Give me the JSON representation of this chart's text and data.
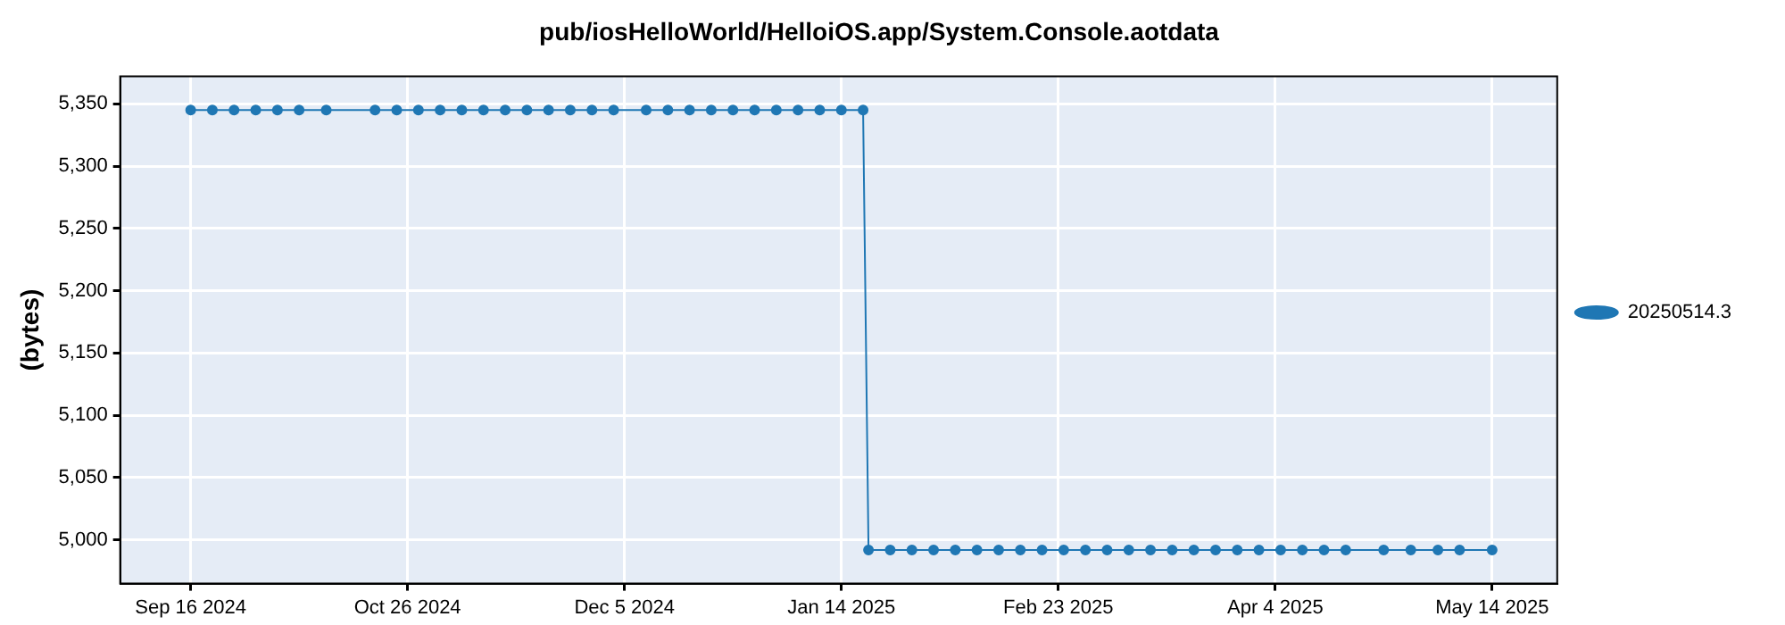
{
  "chart_data": {
    "type": "line",
    "title": "pub/iosHelloWorld/HelloiOS.app/System.Console.aotdata",
    "ylabel": "(bytes)",
    "x": [
      "2024-09-16",
      "2024-09-20",
      "2024-09-24",
      "2024-09-28",
      "2024-10-02",
      "2024-10-06",
      "2024-10-11",
      "2024-10-20",
      "2024-10-24",
      "2024-10-28",
      "2024-11-01",
      "2024-11-05",
      "2024-11-09",
      "2024-11-13",
      "2024-11-17",
      "2024-11-21",
      "2024-11-25",
      "2024-11-29",
      "2024-12-03",
      "2024-12-09",
      "2024-12-13",
      "2024-12-17",
      "2024-12-21",
      "2024-12-25",
      "2024-12-29",
      "2025-01-02",
      "2025-01-06",
      "2025-01-10",
      "2025-01-14",
      "2025-01-18",
      "2025-01-19",
      "2025-01-23",
      "2025-01-27",
      "2025-01-31",
      "2025-02-04",
      "2025-02-08",
      "2025-02-12",
      "2025-02-16",
      "2025-02-20",
      "2025-02-24",
      "2025-02-28",
      "2025-03-04",
      "2025-03-08",
      "2025-03-12",
      "2025-03-16",
      "2025-03-20",
      "2025-03-24",
      "2025-03-28",
      "2025-04-01",
      "2025-04-05",
      "2025-04-09",
      "2025-04-13",
      "2025-04-17",
      "2025-04-24",
      "2025-04-29",
      "2025-05-04",
      "2025-05-08",
      "2025-05-14"
    ],
    "series": [
      {
        "name": "20250514.3",
        "color": "#1f77b4",
        "values": [
          5345,
          5345,
          5345,
          5345,
          5345,
          5345,
          5345,
          5345,
          5345,
          5345,
          5345,
          5345,
          5345,
          5345,
          5345,
          5345,
          5345,
          5345,
          5345,
          5345,
          5345,
          5345,
          5345,
          5345,
          5345,
          5345,
          5345,
          5345,
          5345,
          5345,
          4992,
          4992,
          4992,
          4992,
          4992,
          4992,
          4992,
          4992,
          4992,
          4992,
          4992,
          4992,
          4992,
          4992,
          4992,
          4992,
          4992,
          4992,
          4992,
          4992,
          4992,
          4992,
          4992,
          4992,
          4992,
          4992,
          4992,
          4992
        ]
      }
    ],
    "xlim": [
      "2024-09-03",
      "2025-05-26"
    ],
    "xticks": [
      {
        "value": "2024-09-16",
        "label": "Sep 16 2024"
      },
      {
        "value": "2024-10-26",
        "label": "Oct 26 2024"
      },
      {
        "value": "2024-12-05",
        "label": "Dec 5 2024"
      },
      {
        "value": "2025-01-14",
        "label": "Jan 14 2025"
      },
      {
        "value": "2025-02-23",
        "label": "Feb 23 2025"
      },
      {
        "value": "2025-04-04",
        "label": "Apr 4 2025"
      },
      {
        "value": "2025-05-14",
        "label": "May 14 2025"
      }
    ],
    "ylim": [
      4965,
      5372
    ],
    "yticks": [
      {
        "value": 5000,
        "label": "5,000"
      },
      {
        "value": 5050,
        "label": "5,050"
      },
      {
        "value": 5100,
        "label": "5,100"
      },
      {
        "value": 5150,
        "label": "5,150"
      },
      {
        "value": 5200,
        "label": "5,200"
      },
      {
        "value": 5250,
        "label": "5,250"
      },
      {
        "value": 5300,
        "label": "5,300"
      },
      {
        "value": 5350,
        "label": "5,350"
      }
    ],
    "grid": true,
    "legend": "right",
    "marker": "circle",
    "line_style": "solid"
  }
}
